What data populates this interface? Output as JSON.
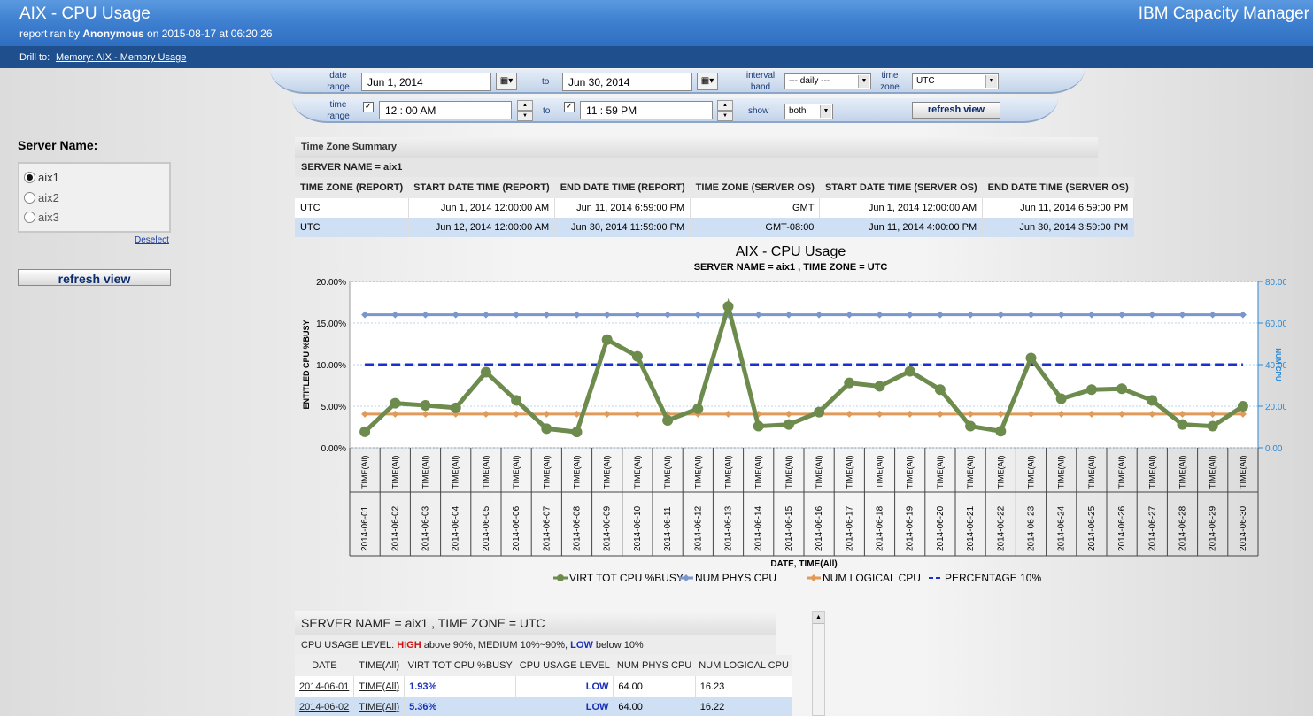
{
  "header": {
    "title": "AIX - CPU Usage",
    "subtitle_prefix": "report ran by ",
    "user": "Anonymous",
    "subtitle_suffix": " on 2015-08-17 at 06:20:26",
    "product": "IBM Capacity Manager"
  },
  "drill": {
    "label": "Drill to:",
    "link": "Memory: AIX - Memory Usage"
  },
  "filters": {
    "date_range_label_1": "date",
    "date_range_label_2": "range",
    "date_from": "Jun 1, 2014",
    "to_label": "to",
    "date_to": "Jun 30, 2014",
    "interval_label_1": "interval",
    "interval_label_2": "band",
    "interval_value": "---  daily  ---",
    "timezone_label_1": "time",
    "timezone_label_2": "zone",
    "timezone_value": "UTC",
    "time_range_label_1": "time",
    "time_range_label_2": "range",
    "time_from": "12  :  00   AM",
    "time_to": "11  :  59   PM",
    "show_label": "show",
    "show_value": "both",
    "refresh_label": "refresh view",
    "check_mark": "✓",
    "calendar_icon": "▦▾"
  },
  "sidebar": {
    "title": "Server Name:",
    "servers": [
      "aix1",
      "aix2",
      "aix3"
    ],
    "selected": "aix1",
    "deselect": "Deselect",
    "refresh": "refresh view"
  },
  "summary": {
    "title": "Time Zone Summary",
    "server": "SERVER NAME = aix1",
    "columns": [
      "TIME ZONE (REPORT)",
      "START DATE TIME (REPORT)",
      "END DATE TIME (REPORT)",
      "TIME ZONE (SERVER OS)",
      "START DATE TIME (SERVER OS)",
      "END DATE TIME (SERVER OS)"
    ],
    "rows": [
      [
        "UTC",
        "Jun 1, 2014 12:00:00 AM",
        "Jun 11, 2014 6:59:00 PM",
        "GMT",
        "Jun 1, 2014 12:00:00 AM",
        "Jun 11, 2014 6:59:00 PM"
      ],
      [
        "UTC",
        "Jun 12, 2014 12:00:00 AM",
        "Jun 30, 2014 11:59:00 PM",
        "GMT-08:00",
        "Jun 11, 2014 4:00:00 PM",
        "Jun 30, 2014 3:59:00 PM"
      ]
    ]
  },
  "chart_data": {
    "type": "line",
    "title": "AIX - CPU Usage",
    "subtitle": "SERVER NAME = aix1 , TIME ZONE = UTC",
    "ylabel": "ENTITLED CPU %BUSY",
    "y2label": "NUM CPU",
    "xlabel": "DATE, TIME(All)",
    "ylim": [
      0,
      20
    ],
    "y2lim": [
      0,
      80
    ],
    "yticks": [
      "0.00%",
      "5.00%",
      "10.00%",
      "15.00%",
      "20.00%"
    ],
    "y2ticks": [
      "0.00",
      "20.00",
      "40.00",
      "60.00",
      "80.00"
    ],
    "time_label": "TIME(All)",
    "categories": [
      "2014-06-01",
      "2014-06-02",
      "2014-06-03",
      "2014-06-04",
      "2014-06-05",
      "2014-06-06",
      "2014-06-07",
      "2014-06-08",
      "2014-06-09",
      "2014-06-10",
      "2014-06-11",
      "2014-06-12",
      "2014-06-13",
      "2014-06-14",
      "2014-06-15",
      "2014-06-16",
      "2014-06-17",
      "2014-06-18",
      "2014-06-19",
      "2014-06-20",
      "2014-06-21",
      "2014-06-22",
      "2014-06-23",
      "2014-06-24",
      "2014-06-25",
      "2014-06-26",
      "2014-06-27",
      "2014-06-28",
      "2014-06-29",
      "2014-06-30"
    ],
    "series": [
      {
        "name": "VIRT TOT CPU %BUSY",
        "axis": "left",
        "color": "#6e8b4e",
        "values": [
          1.93,
          5.36,
          5.1,
          4.8,
          9.1,
          5.7,
          2.3,
          1.9,
          13.0,
          11.0,
          3.3,
          4.7,
          17.0,
          2.6,
          2.8,
          4.3,
          7.8,
          7.4,
          9.2,
          7.0,
          2.6,
          2.0,
          10.8,
          5.9,
          7.0,
          7.1,
          5.7,
          2.8,
          2.6,
          5.0
        ]
      },
      {
        "name": "NUM PHYS CPU",
        "axis": "right",
        "color": "#7b96cc",
        "values": [
          64,
          64,
          64,
          64,
          64,
          64,
          64,
          64,
          64,
          64,
          64,
          64,
          64,
          64,
          64,
          64,
          64,
          64,
          64,
          64,
          64,
          64,
          64,
          64,
          64,
          64,
          64,
          64,
          64,
          64
        ]
      },
      {
        "name": "NUM LOGICAL CPU",
        "axis": "right",
        "color": "#e09a5a",
        "values": [
          16.23,
          16.22,
          16.2,
          16.2,
          16.2,
          16.2,
          16.2,
          16.2,
          16.2,
          16.2,
          16.2,
          16.2,
          16.2,
          16.2,
          16.2,
          16.2,
          16.2,
          16.2,
          16.2,
          16.2,
          16.2,
          16.2,
          16.2,
          16.2,
          16.2,
          16.2,
          16.2,
          16.2,
          16.2,
          16.2
        ]
      },
      {
        "name": "PERCENTAGE 10%",
        "axis": "left",
        "color": "#1a2fd0",
        "dashed": true,
        "values": [
          10,
          10,
          10,
          10,
          10,
          10,
          10,
          10,
          10,
          10,
          10,
          10,
          10,
          10,
          10,
          10,
          10,
          10,
          10,
          10,
          10,
          10,
          10,
          10,
          10,
          10,
          10,
          10,
          10,
          10
        ]
      }
    ]
  },
  "detail": {
    "title": "SERVER NAME = aix1 , TIME ZONE = UTC",
    "legend_prefix": "CPU USAGE LEVEL: ",
    "high": "HIGH",
    "legend_mid": " above 90%, MEDIUM 10%~90%, ",
    "low": "LOW",
    "legend_suffix": " below 10%",
    "columns": [
      "DATE",
      "TIME(All)",
      "VIRT TOT CPU %BUSY",
      "CPU USAGE LEVEL",
      "NUM PHYS CPU",
      "NUM LOGICAL CPU"
    ],
    "rows": [
      [
        "2014-06-01",
        "TIME(All)",
        "1.93%",
        "LOW",
        "64.00",
        "16.23"
      ],
      [
        "2014-06-02",
        "TIME(All)",
        "5.36%",
        "LOW",
        "64.00",
        "16.22"
      ]
    ]
  }
}
